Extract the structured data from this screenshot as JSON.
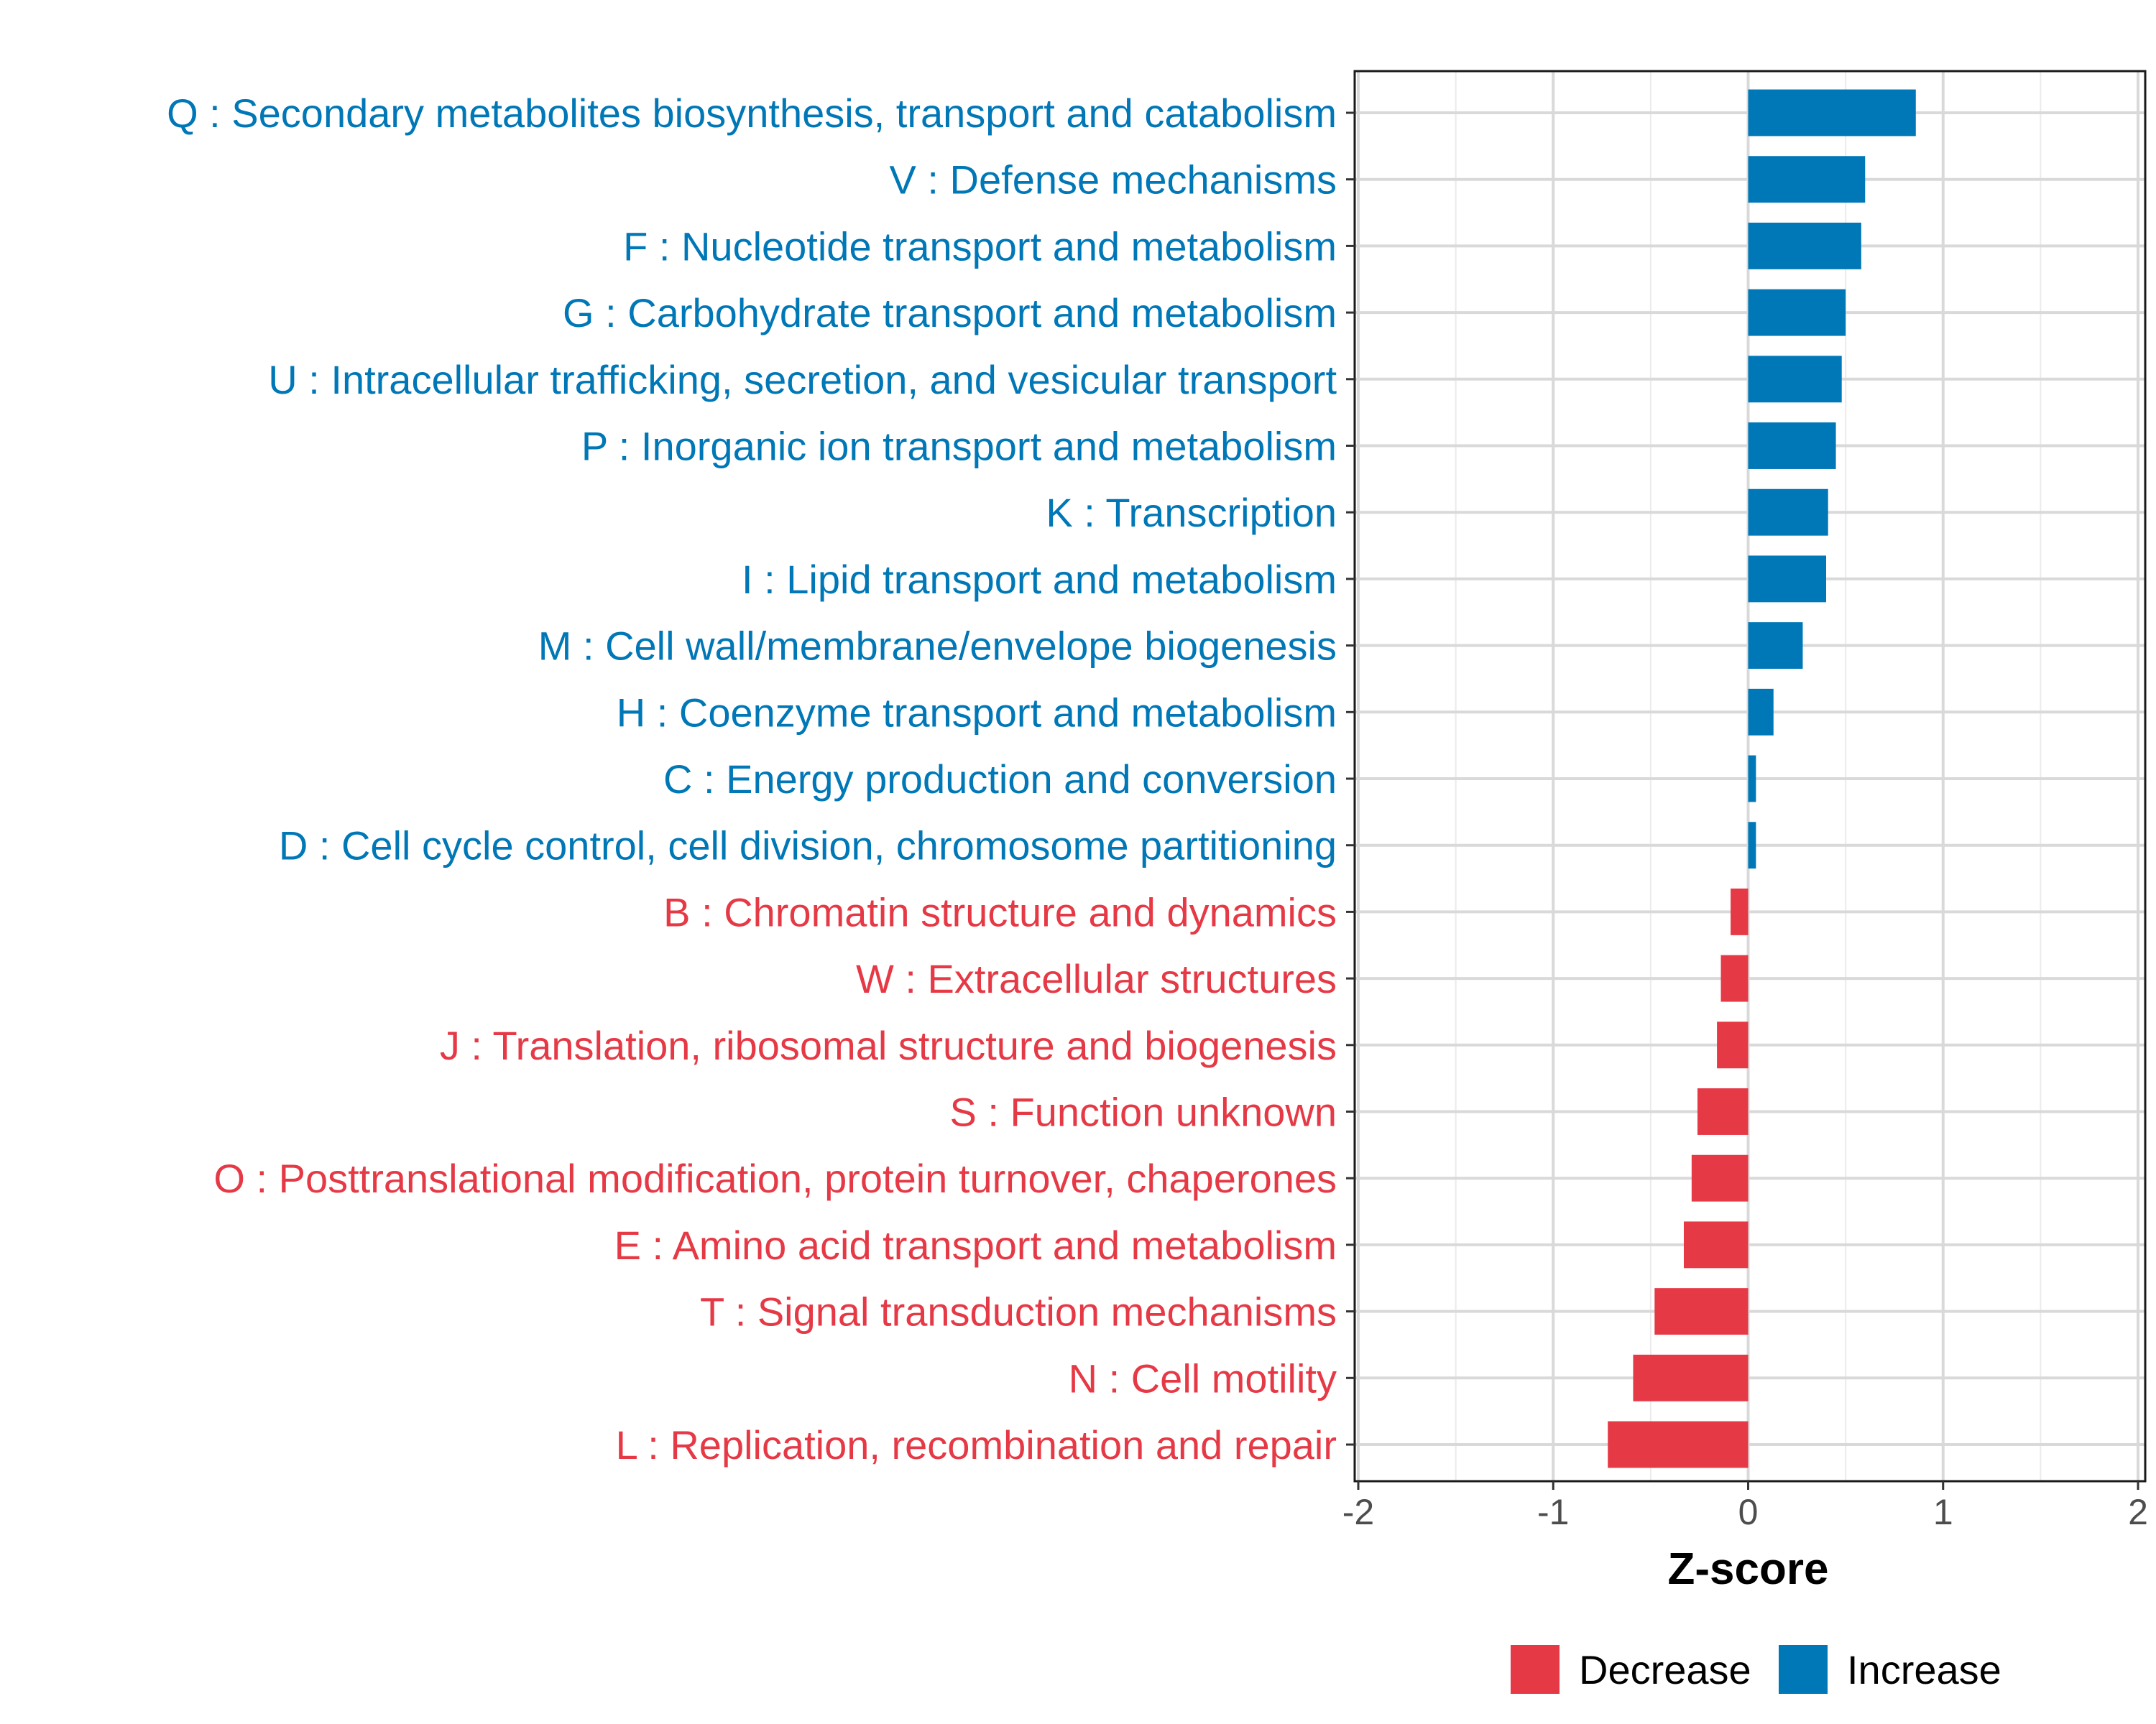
{
  "chart_data": {
    "type": "bar",
    "orientation": "horizontal",
    "xlabel": "Z-score",
    "xlim": [
      -2,
      2
    ],
    "xticks": [
      -2,
      -1,
      0,
      1,
      2
    ],
    "xtick_labels": [
      "-2",
      "-1",
      "0",
      "1",
      "2"
    ],
    "grid": true,
    "legend": {
      "placement": "bottom",
      "entries": [
        {
          "key": "Decrease",
          "label": "Decrease",
          "color": "#E63946"
        },
        {
          "key": "Increase",
          "label": "Increase",
          "color": "#0077B6"
        }
      ]
    },
    "categories": [
      "Q : Secondary metabolites biosynthesis, transport and catabolism",
      "V : Defense mechanisms",
      "F : Nucleotide transport and metabolism",
      "G : Carbohydrate transport and metabolism",
      "U : Intracellular trafficking, secretion, and vesicular transport",
      "P : Inorganic ion transport and metabolism",
      "K : Transcription",
      "I : Lipid transport and metabolism",
      "M : Cell wall/membrane/envelope biogenesis",
      "H : Coenzyme transport and metabolism",
      "C : Energy production and conversion",
      "D : Cell cycle control, cell division, chromosome partitioning",
      "B : Chromatin structure and dynamics",
      "W : Extracellular structures",
      "J : Translation, ribosomal structure and biogenesis",
      "S : Function unknown",
      "O : Posttranslational modification, protein turnover, chaperones",
      "E : Amino acid transport and metabolism",
      "T : Signal transduction mechanisms",
      "N : Cell motility",
      "L : Replication, recombination and repair"
    ],
    "values": [
      0.86,
      0.6,
      0.58,
      0.5,
      0.48,
      0.45,
      0.41,
      0.4,
      0.28,
      0.13,
      0.04,
      0.04,
      -0.09,
      -0.14,
      -0.16,
      -0.26,
      -0.29,
      -0.33,
      -0.48,
      -0.59,
      -0.72
    ],
    "groups": [
      "Increase",
      "Increase",
      "Increase",
      "Increase",
      "Increase",
      "Increase",
      "Increase",
      "Increase",
      "Increase",
      "Increase",
      "Increase",
      "Increase",
      "Decrease",
      "Decrease",
      "Decrease",
      "Decrease",
      "Decrease",
      "Decrease",
      "Decrease",
      "Decrease",
      "Decrease"
    ]
  }
}
